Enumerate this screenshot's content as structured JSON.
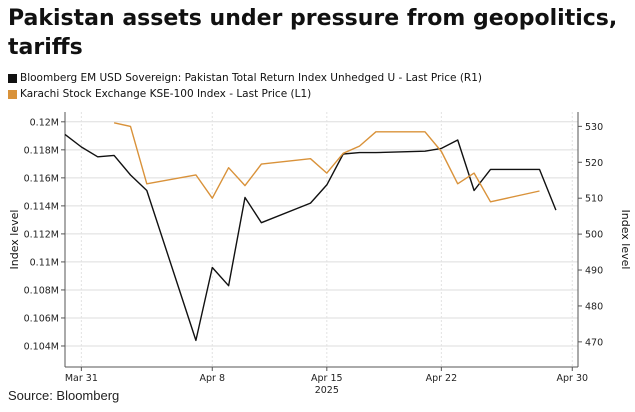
{
  "title": "Pakistan assets under pressure from geopolitics, tariffs",
  "source": "Source: Bloomberg",
  "chart_data": {
    "type": "line",
    "title": "Pakistan assets under pressure from geopolitics, tariffs",
    "x_tick_labels": [
      "Mar 31",
      "Apr 8",
      "Apr 15",
      "Apr 22",
      "Apr 30"
    ],
    "x_year_label": "2025",
    "ylabel_left": "Index level",
    "ylabel_right": "Index level",
    "ylim_left": [
      0.1025,
      0.1207
    ],
    "ylim_right": [
      463,
      534
    ],
    "left_ticks": [
      0.104,
      0.106,
      0.108,
      0.11,
      0.112,
      0.114,
      0.116,
      0.118,
      0.12
    ],
    "left_tick_labels": [
      "0.104M",
      "0.106M",
      "0.108M",
      "0.11M",
      "0.112M",
      "0.114M",
      "0.116M",
      "0.118M",
      "0.12M"
    ],
    "right_ticks": [
      470,
      480,
      490,
      500,
      510,
      520,
      530
    ],
    "right_tick_labels": [
      "470",
      "480",
      "490",
      "500",
      "510",
      "520",
      "530"
    ],
    "grid": true,
    "legend_position": "top-left",
    "series": [
      {
        "name": "Bloomberg EM USD Sovereign: Pakistan Total Return Index Unhedged U - Last Price (R1)",
        "color": "#111111",
        "axis": "left",
        "points": [
          [
            "Mar 30",
            0.1191
          ],
          [
            "Mar 31",
            0.1182
          ],
          [
            "Apr 1",
            0.1175
          ],
          [
            "Apr 2",
            0.1176
          ],
          [
            "Apr 3",
            0.1162
          ],
          [
            "Apr 4",
            0.1151
          ],
          [
            "Apr 7",
            0.1044
          ],
          [
            "Apr 8",
            0.1096
          ],
          [
            "Apr 9",
            0.1083
          ],
          [
            "Apr 10",
            0.1146
          ],
          [
            "Apr 11",
            0.1128
          ],
          [
            "Apr 14",
            0.1142
          ],
          [
            "Apr 15",
            0.1155
          ],
          [
            "Apr 16",
            0.1177
          ],
          [
            "Apr 17",
            0.1178
          ],
          [
            "Apr 18",
            0.1178
          ],
          [
            "Apr 21",
            0.1179
          ],
          [
            "Apr 22",
            0.1181
          ],
          [
            "Apr 23",
            0.1187
          ],
          [
            "Apr 24",
            0.1151
          ],
          [
            "Apr 25",
            0.1166
          ],
          [
            "Apr 28",
            0.1166
          ],
          [
            "Apr 29",
            0.1137
          ]
        ]
      },
      {
        "name": "Karachi Stock Exchange KSE-100 Index - Last Price (L1)",
        "color": "#d9923a",
        "axis": "right",
        "points": [
          [
            "Apr 2",
            531
          ],
          [
            "Apr 3",
            530
          ],
          [
            "Apr 4",
            514
          ],
          [
            "Apr 7",
            516.5
          ],
          [
            "Apr 8",
            510
          ],
          [
            "Apr 9",
            518.5
          ],
          [
            "Apr 10",
            513.5
          ],
          [
            "Apr 11",
            519.5
          ],
          [
            "Apr 14",
            521
          ],
          [
            "Apr 15",
            517
          ],
          [
            "Apr 16",
            522.5
          ],
          [
            "Apr 17",
            524.5
          ],
          [
            "Apr 18",
            528.5
          ],
          [
            "Apr 21",
            528.5
          ],
          [
            "Apr 22",
            523
          ],
          [
            "Apr 23",
            514
          ],
          [
            "Apr 24",
            517
          ],
          [
            "Apr 25",
            509
          ],
          [
            "Apr 28",
            512
          ]
        ]
      }
    ]
  }
}
